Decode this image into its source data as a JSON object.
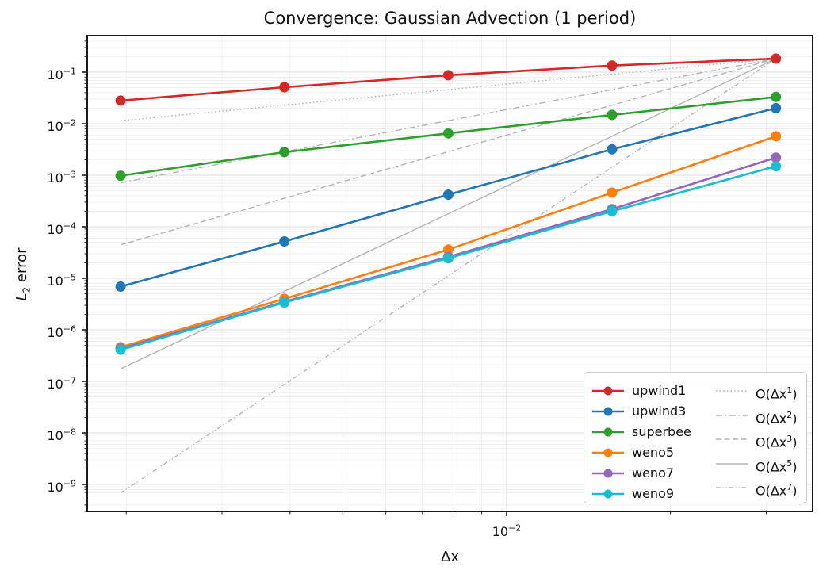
{
  "labels": {
    "title": "Convergence: Gaussian Advection (1 period)",
    "xlabel": "Δx",
    "ylabel_L": "L",
    "ylabel_sub": "2",
    "ylabel_rest": "error",
    "log_base": "10"
  },
  "chart_data": {
    "type": "line",
    "title": "Convergence: Gaussian Advection (1 period)",
    "xlabel": "Δx",
    "ylabel": "L₂ error",
    "xscale": "log",
    "yscale": "log",
    "xlim": [
      0.001696,
      0.0365
    ],
    "ylim": [
      3e-10,
      0.5102
    ],
    "grid": "both",
    "legend_position": "lower right",
    "x": [
      0.001953125,
      0.00390625,
      0.0078125,
      0.015625,
      0.03125
    ],
    "series": [
      {
        "name": "upwind1",
        "color": "#d62728",
        "values": [
          0.028,
          0.051,
          0.087,
          0.134,
          0.183
        ]
      },
      {
        "name": "upwind3",
        "color": "#1f77b4",
        "values": [
          6.9e-06,
          5.2e-05,
          0.00042,
          0.0032,
          0.02
        ]
      },
      {
        "name": "superbee",
        "color": "#2ca02c",
        "values": [
          0.00098,
          0.0028,
          0.0065,
          0.0148,
          0.033
        ]
      },
      {
        "name": "weno5",
        "color": "#ff7f0e",
        "values": [
          4.6e-07,
          4e-06,
          3.6e-05,
          0.00046,
          0.0057
        ]
      },
      {
        "name": "weno7",
        "color": "#9467bd",
        "values": [
          4.3e-07,
          3.5e-06,
          2.6e-05,
          0.00022,
          0.0022
        ]
      },
      {
        "name": "weno9",
        "color": "#17becf",
        "values": [
          4.1e-07,
          3.4e-06,
          2.45e-05,
          0.0002,
          0.0015
        ]
      }
    ],
    "reference": {
      "anchor_value": 0.183,
      "anchor_x": 0.03125,
      "x_start": 0.001953125,
      "x_end": 0.03125,
      "color": "#b3b3b3",
      "label_prefix": "O(Δx",
      "label_suffix": ")"
    },
    "reference_lines": [
      {
        "exponent": 1,
        "style": "dotted"
      },
      {
        "exponent": 2,
        "style": "dashdot"
      },
      {
        "exponent": 3,
        "style": "dashed"
      },
      {
        "exponent": 5,
        "style": "solid"
      },
      {
        "exponent": 7,
        "style": "dashdotdot"
      }
    ],
    "y_tick_exponents": [
      -1,
      -2,
      -3,
      -4,
      -5,
      -6,
      -7,
      -8,
      -9
    ],
    "x_major_tick_exponent": -2
  }
}
